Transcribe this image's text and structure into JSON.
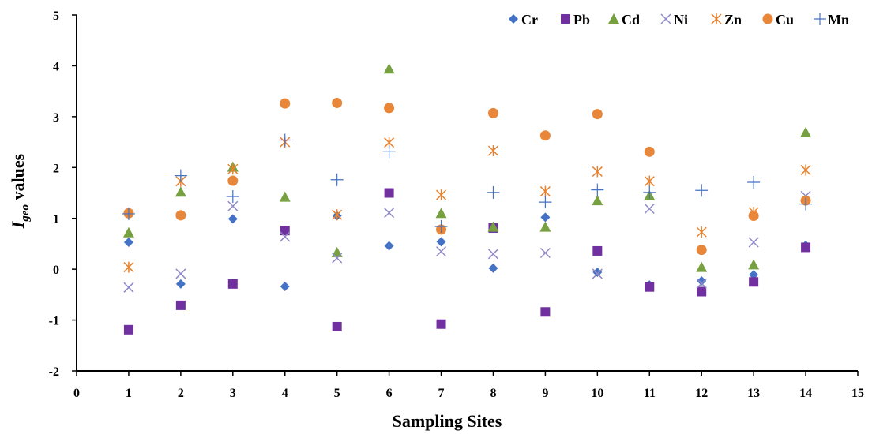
{
  "chart_data": {
    "type": "scatter",
    "title": "",
    "xlabel": "Sampling Sites",
    "ylabel": {
      "main": "I",
      "sub": "geo",
      "suffix": " values"
    },
    "xlim": [
      0,
      15
    ],
    "ylim": [
      -2,
      5
    ],
    "xticks": [
      "0",
      "1",
      "2",
      "3",
      "4",
      "5",
      "6",
      "7",
      "8",
      "9",
      "10",
      "11",
      "12",
      "13",
      "14",
      "15"
    ],
    "yticks": [
      "-2",
      "-1",
      "0",
      "1",
      "2",
      "3",
      "4",
      "5"
    ],
    "grid": false,
    "legend_position": "top-right",
    "x": [
      1,
      2,
      3,
      4,
      5,
      6,
      7,
      8,
      9,
      10,
      11,
      12,
      13,
      14
    ],
    "series": [
      {
        "name": "Cr",
        "marker": "diamond",
        "color": "#4472C4",
        "values": [
          0.53,
          -0.29,
          0.99,
          -0.34,
          1.05,
          0.46,
          0.54,
          0.02,
          1.02,
          -0.06,
          -0.31,
          -0.23,
          -0.11,
          0.47
        ]
      },
      {
        "name": "Pb",
        "marker": "square",
        "color": "#7030A0",
        "values": [
          -1.19,
          -0.71,
          -0.29,
          0.76,
          -1.13,
          1.5,
          -1.08,
          0.81,
          -0.84,
          0.36,
          -0.35,
          -0.44,
          -0.25,
          0.43
        ]
      },
      {
        "name": "Cd",
        "marker": "triangle",
        "color": "#77A040",
        "values": [
          0.72,
          1.52,
          2.01,
          1.42,
          0.33,
          3.94,
          1.1,
          0.83,
          0.83,
          1.35,
          1.45,
          0.04,
          0.09,
          2.69
        ]
      },
      {
        "name": "Ni",
        "marker": "x",
        "color": "#8E88C8",
        "values": [
          -0.36,
          -0.09,
          1.24,
          0.64,
          0.22,
          1.11,
          0.35,
          0.3,
          0.32,
          -0.09,
          1.19,
          -0.28,
          0.53,
          1.44
        ]
      },
      {
        "name": "Zn",
        "marker": "asterisk",
        "color": "#E8822E",
        "values": [
          0.04,
          1.73,
          1.97,
          2.5,
          1.07,
          2.49,
          1.46,
          2.33,
          1.53,
          1.92,
          1.73,
          0.73,
          1.12,
          1.95
        ]
      },
      {
        "name": "Cu",
        "marker": "circle",
        "color": "#E8873A",
        "values": [
          1.1,
          1.06,
          1.74,
          3.26,
          3.27,
          3.17,
          0.78,
          3.07,
          2.63,
          3.05,
          2.31,
          0.38,
          1.05,
          1.35
        ]
      },
      {
        "name": "Mn",
        "marker": "plus",
        "color": "#4472C4",
        "values": [
          1.09,
          1.84,
          1.43,
          2.54,
          1.76,
          2.31,
          0.84,
          1.51,
          1.32,
          1.56,
          1.51,
          1.55,
          1.71,
          1.28
        ]
      }
    ]
  }
}
